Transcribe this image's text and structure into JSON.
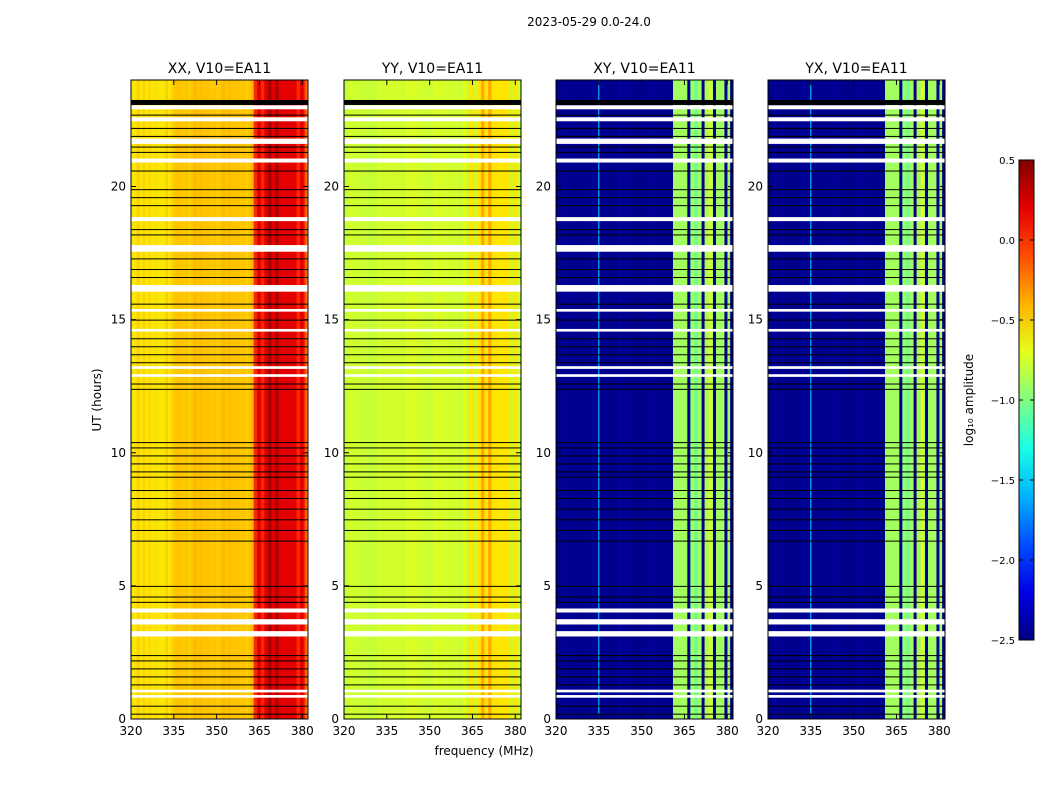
{
  "chart_data": {
    "type": "heatmap",
    "suptitle": "2023-05-29 0.0-24.0",
    "xlabel": "frequency (MHz)",
    "ylabel": "UT (hours)",
    "xlim": [
      320,
      382
    ],
    "ylim": [
      0,
      24
    ],
    "xticks": [
      320,
      335,
      350,
      365,
      380
    ],
    "yticks": [
      0,
      5,
      10,
      15,
      20
    ],
    "panels": [
      {
        "name": "XX",
        "title": "XX, V10=EA11",
        "base_value": -0.45,
        "rfi_value": 0.2,
        "rfi_mhz": [
          363,
          381
        ],
        "lowband_value": -0.65
      },
      {
        "name": "YY",
        "title": "YY, V10=EA11",
        "base_value": -0.75,
        "rfi_value": -0.55,
        "rfi_mhz": [
          363,
          381
        ],
        "lowband_value": -0.8
      },
      {
        "name": "XY",
        "title": "XY, V10=EA11",
        "base_value": -2.45,
        "rfi_value": -0.9,
        "rfi_mhz": [
          361,
          381
        ],
        "lowband_value": -2.45
      },
      {
        "name": "YX",
        "title": "YX, V10=EA11",
        "base_value": -2.45,
        "rfi_value": -0.9,
        "rfi_mhz": [
          361,
          381
        ],
        "lowband_value": -2.45
      }
    ],
    "flag_bands_hours": [
      [
        22.9,
        23.05
      ],
      [
        22.45,
        22.6
      ],
      [
        21.6,
        21.8
      ],
      [
        20.9,
        21.05
      ],
      [
        18.7,
        18.85
      ],
      [
        17.55,
        17.8
      ],
      [
        16.05,
        16.3
      ],
      [
        15.3,
        15.4
      ],
      [
        14.55,
        14.65
      ],
      [
        13.15,
        13.25
      ],
      [
        12.85,
        12.95
      ],
      [
        4.0,
        4.15
      ],
      [
        3.55,
        3.75
      ],
      [
        3.1,
        3.3
      ],
      [
        1.0,
        1.1
      ],
      [
        0.8,
        0.9
      ]
    ],
    "flag_lines_hours": [
      23.1,
      22.7,
      22.2,
      21.9,
      21.5,
      21.3,
      20.6,
      19.9,
      19.6,
      19.3,
      18.4,
      18.2,
      17.3,
      16.9,
      16.6,
      15.6,
      15.0,
      14.3,
      14.0,
      13.7,
      13.4,
      12.6,
      12.4,
      10.4,
      10.2,
      9.9,
      9.6,
      9.3,
      9.1,
      8.6,
      8.3,
      7.9,
      7.5,
      7.1,
      6.7,
      5.0,
      4.6,
      4.4,
      2.4,
      2.2,
      1.9,
      1.6,
      1.3,
      0.5,
      0.2
    ],
    "colorbar": {
      "label": "log₁₀ amplitude",
      "vmin": -2.5,
      "vmax": 0.5,
      "ticks": [
        "0.5",
        "0.0",
        "−0.5",
        "−1.0",
        "−1.5",
        "−2.0",
        "−2.5"
      ],
      "tick_values": [
        0.5,
        0.0,
        -0.5,
        -1.0,
        -1.5,
        -2.0,
        -2.5
      ]
    }
  }
}
